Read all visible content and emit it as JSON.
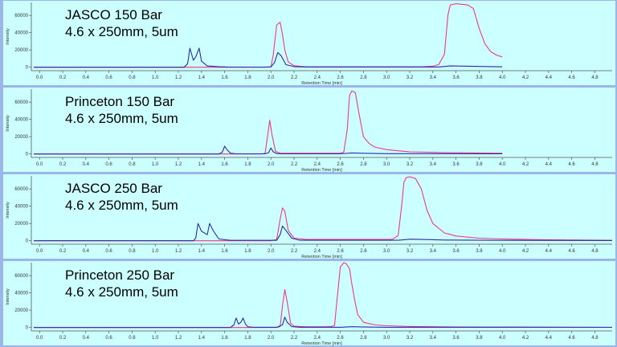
{
  "chart_data": [
    {
      "type": "line",
      "title_lines": [
        "JASCO 150 Bar",
        "4.6 x 250mm,  5um"
      ],
      "xlabel": "Retention Time [min]",
      "ylabel": "Intensity",
      "xlim": [
        -0.05,
        4.95
      ],
      "ylim": [
        -4000,
        75000
      ],
      "x_ticks": [
        "0.0",
        "0.2",
        "0.4",
        "0.6",
        "0.8",
        "1.0",
        "1.2",
        "1.4",
        "1.6",
        "1.8",
        "2.0",
        "2.2",
        "2.4",
        "2.6",
        "2.8",
        "3.0",
        "3.2",
        "3.4",
        "3.6",
        "3.8",
        "4.0",
        "4.2",
        "4.4",
        "4.6",
        "4.8"
      ],
      "y_ticks": [
        "0",
        "20000",
        "40000",
        "60000"
      ],
      "series": [
        {
          "color": "#f2358a",
          "x": [
            -0.05,
            1.95,
            2.0,
            2.02,
            2.05,
            2.08,
            2.1,
            2.12,
            2.15,
            2.2,
            2.3,
            3.3,
            3.4,
            3.45,
            3.5,
            3.53,
            3.55,
            3.6,
            3.7,
            3.75,
            3.8,
            3.85,
            3.9,
            3.95,
            4.0
          ],
          "values": [
            0,
            0,
            300,
            14000,
            49000,
            52000,
            38000,
            20000,
            6000,
            1800,
            500,
            500,
            1200,
            3000,
            15000,
            60000,
            72000,
            73500,
            72000,
            68000,
            45000,
            27000,
            18000,
            14000,
            12000
          ]
        },
        {
          "color": "#2c2ca8",
          "x": [
            -0.05,
            1.25,
            1.28,
            1.3,
            1.33,
            1.35,
            1.38,
            1.4,
            1.45,
            1.55,
            1.65,
            1.95,
            2.0,
            2.03,
            2.06,
            2.09,
            2.13,
            2.2,
            2.3,
            3.45,
            3.55,
            3.7,
            3.9,
            4.0
          ],
          "values": [
            0,
            0,
            4000,
            22000,
            8000,
            12000,
            22000,
            7000,
            1500,
            600,
            200,
            200,
            500,
            5000,
            17000,
            13000,
            3000,
            700,
            300,
            300,
            1500,
            1200,
            700,
            500
          ]
        }
      ]
    },
    {
      "type": "line",
      "title_lines": [
        "Princeton 150 Bar",
        "4.6 x 250mm,  5um"
      ],
      "xlabel": "Retention Time [min]",
      "ylabel": "Intensity",
      "xlim": [
        -0.05,
        4.95
      ],
      "ylim": [
        -4000,
        75000
      ],
      "x_ticks": [
        "0.0",
        "0.2",
        "0.4",
        "0.6",
        "0.8",
        "1.0",
        "1.2",
        "1.4",
        "1.6",
        "1.8",
        "2.0",
        "2.2",
        "2.4",
        "2.6",
        "2.8",
        "3.0",
        "3.2",
        "3.4",
        "3.6",
        "3.8",
        "4.0",
        "4.2",
        "4.4",
        "4.6",
        "4.8"
      ],
      "y_ticks": [
        "0",
        "20000",
        "40000",
        "60000"
      ],
      "series": [
        {
          "color": "#f2358a",
          "x": [
            -0.05,
            1.92,
            1.95,
            1.97,
            1.99,
            2.01,
            2.04,
            2.08,
            2.6,
            2.63,
            2.66,
            2.68,
            2.7,
            2.73,
            2.76,
            2.8,
            2.85,
            2.9,
            3.0,
            3.2,
            3.5,
            4.0
          ],
          "values": [
            0,
            0,
            800,
            20000,
            39000,
            22000,
            3000,
            800,
            800,
            2000,
            28000,
            68000,
            73000,
            71000,
            48000,
            20000,
            12000,
            8000,
            5000,
            2500,
            1500,
            800
          ]
        },
        {
          "color": "#2c2ca8",
          "x": [
            -0.05,
            1.55,
            1.58,
            1.6,
            1.62,
            1.65,
            1.7,
            1.95,
            1.98,
            2.0,
            2.02,
            2.05,
            2.1,
            2.6,
            2.7,
            2.8,
            3.0,
            4.0
          ],
          "values": [
            0,
            0,
            2000,
            9000,
            5000,
            900,
            200,
            200,
            1500,
            7000,
            2500,
            500,
            200,
            200,
            1200,
            800,
            400,
            200
          ]
        }
      ]
    },
    {
      "type": "line",
      "title_lines": [
        "JASCO 250 Bar",
        "4.6 x 250mm,  5um"
      ],
      "xlabel": "Retention Time [min]",
      "ylabel": "Intensity",
      "xlim": [
        -0.05,
        4.95
      ],
      "ylim": [
        -4000,
        75000
      ],
      "x_ticks": [
        "0.0",
        "0.2",
        "0.4",
        "0.6",
        "0.8",
        "1.0",
        "1.2",
        "1.4",
        "1.6",
        "1.8",
        "2.0",
        "2.2",
        "2.4",
        "2.6",
        "2.8",
        "3.0",
        "3.2",
        "3.4",
        "3.6",
        "3.8",
        "4.0",
        "4.2",
        "4.4",
        "4.6",
        "4.8"
      ],
      "y_ticks": [
        "0",
        "20000",
        "40000",
        "60000"
      ],
      "series": [
        {
          "color": "#f2358a",
          "x": [
            -0.05,
            2.0,
            2.05,
            2.08,
            2.1,
            2.12,
            2.15,
            2.2,
            2.3,
            3.05,
            3.1,
            3.13,
            3.15,
            3.17,
            3.2,
            3.25,
            3.3,
            3.35,
            3.4,
            3.5,
            3.6,
            3.8,
            4.0,
            4.4,
            4.95
          ],
          "values": [
            0,
            0,
            1500,
            25000,
            38000,
            34000,
            12000,
            3000,
            1500,
            1500,
            6000,
            40000,
            68000,
            73000,
            74000,
            72000,
            60000,
            35000,
            20000,
            9000,
            5500,
            3000,
            2000,
            1000,
            500
          ]
        },
        {
          "color": "#2c2ca8",
          "x": [
            -0.05,
            1.33,
            1.35,
            1.37,
            1.4,
            1.45,
            1.47,
            1.5,
            1.55,
            1.65,
            2.05,
            2.08,
            2.1,
            2.13,
            2.18,
            2.25,
            3.1,
            3.2,
            3.3,
            3.5,
            4.0,
            4.95
          ],
          "values": [
            0,
            0,
            3000,
            20000,
            11000,
            7000,
            20000,
            12000,
            2000,
            500,
            500,
            7000,
            17000,
            12000,
            3000,
            600,
            600,
            1800,
            1500,
            800,
            500,
            300
          ]
        }
      ]
    },
    {
      "type": "line",
      "title_lines": [
        "Princeton 250 Bar",
        "4.6 x 250mm,  5um"
      ],
      "xlabel": "Retention Time [min]",
      "ylabel": "Intensity",
      "xlim": [
        -0.05,
        4.95
      ],
      "ylim": [
        -4000,
        75000
      ],
      "x_ticks": [
        "0.0",
        "0.2",
        "0.4",
        "0.6",
        "0.8",
        "1.0",
        "1.2",
        "1.4",
        "1.6",
        "1.8",
        "2.0",
        "2.2",
        "2.4",
        "2.6",
        "2.8",
        "3.0",
        "3.2",
        "3.4",
        "3.6",
        "3.8",
        "4.0",
        "4.2",
        "4.4",
        "4.6",
        "4.8"
      ],
      "y_ticks": [
        "0",
        "20000",
        "40000",
        "60000"
      ],
      "series": [
        {
          "color": "#f2358a",
          "x": [
            -0.05,
            2.05,
            2.08,
            2.1,
            2.12,
            2.14,
            2.17,
            2.2,
            2.3,
            2.5,
            2.55,
            2.57,
            2.6,
            2.63,
            2.65,
            2.68,
            2.7,
            2.73,
            2.75,
            2.8,
            2.9,
            3.0,
            3.2,
            3.6,
            4.95
          ],
          "values": [
            0,
            0,
            1000,
            25000,
            44000,
            30000,
            5000,
            1500,
            800,
            800,
            2000,
            30000,
            70000,
            75000,
            74000,
            68000,
            50000,
            28000,
            15000,
            6000,
            3000,
            2000,
            1200,
            600,
            300
          ]
        },
        {
          "color": "#2c2ca8",
          "x": [
            -0.05,
            1.65,
            1.68,
            1.7,
            1.72,
            1.74,
            1.76,
            1.78,
            1.8,
            1.85,
            2.05,
            2.1,
            2.12,
            2.14,
            2.18,
            2.25,
            2.6,
            2.7,
            2.8,
            3.0,
            4.95
          ],
          "values": [
            0,
            0,
            3000,
            11000,
            4000,
            6000,
            11000,
            4000,
            800,
            300,
            300,
            3000,
            12000,
            6000,
            1000,
            300,
            300,
            900,
            600,
            300,
            200
          ]
        }
      ]
    }
  ]
}
